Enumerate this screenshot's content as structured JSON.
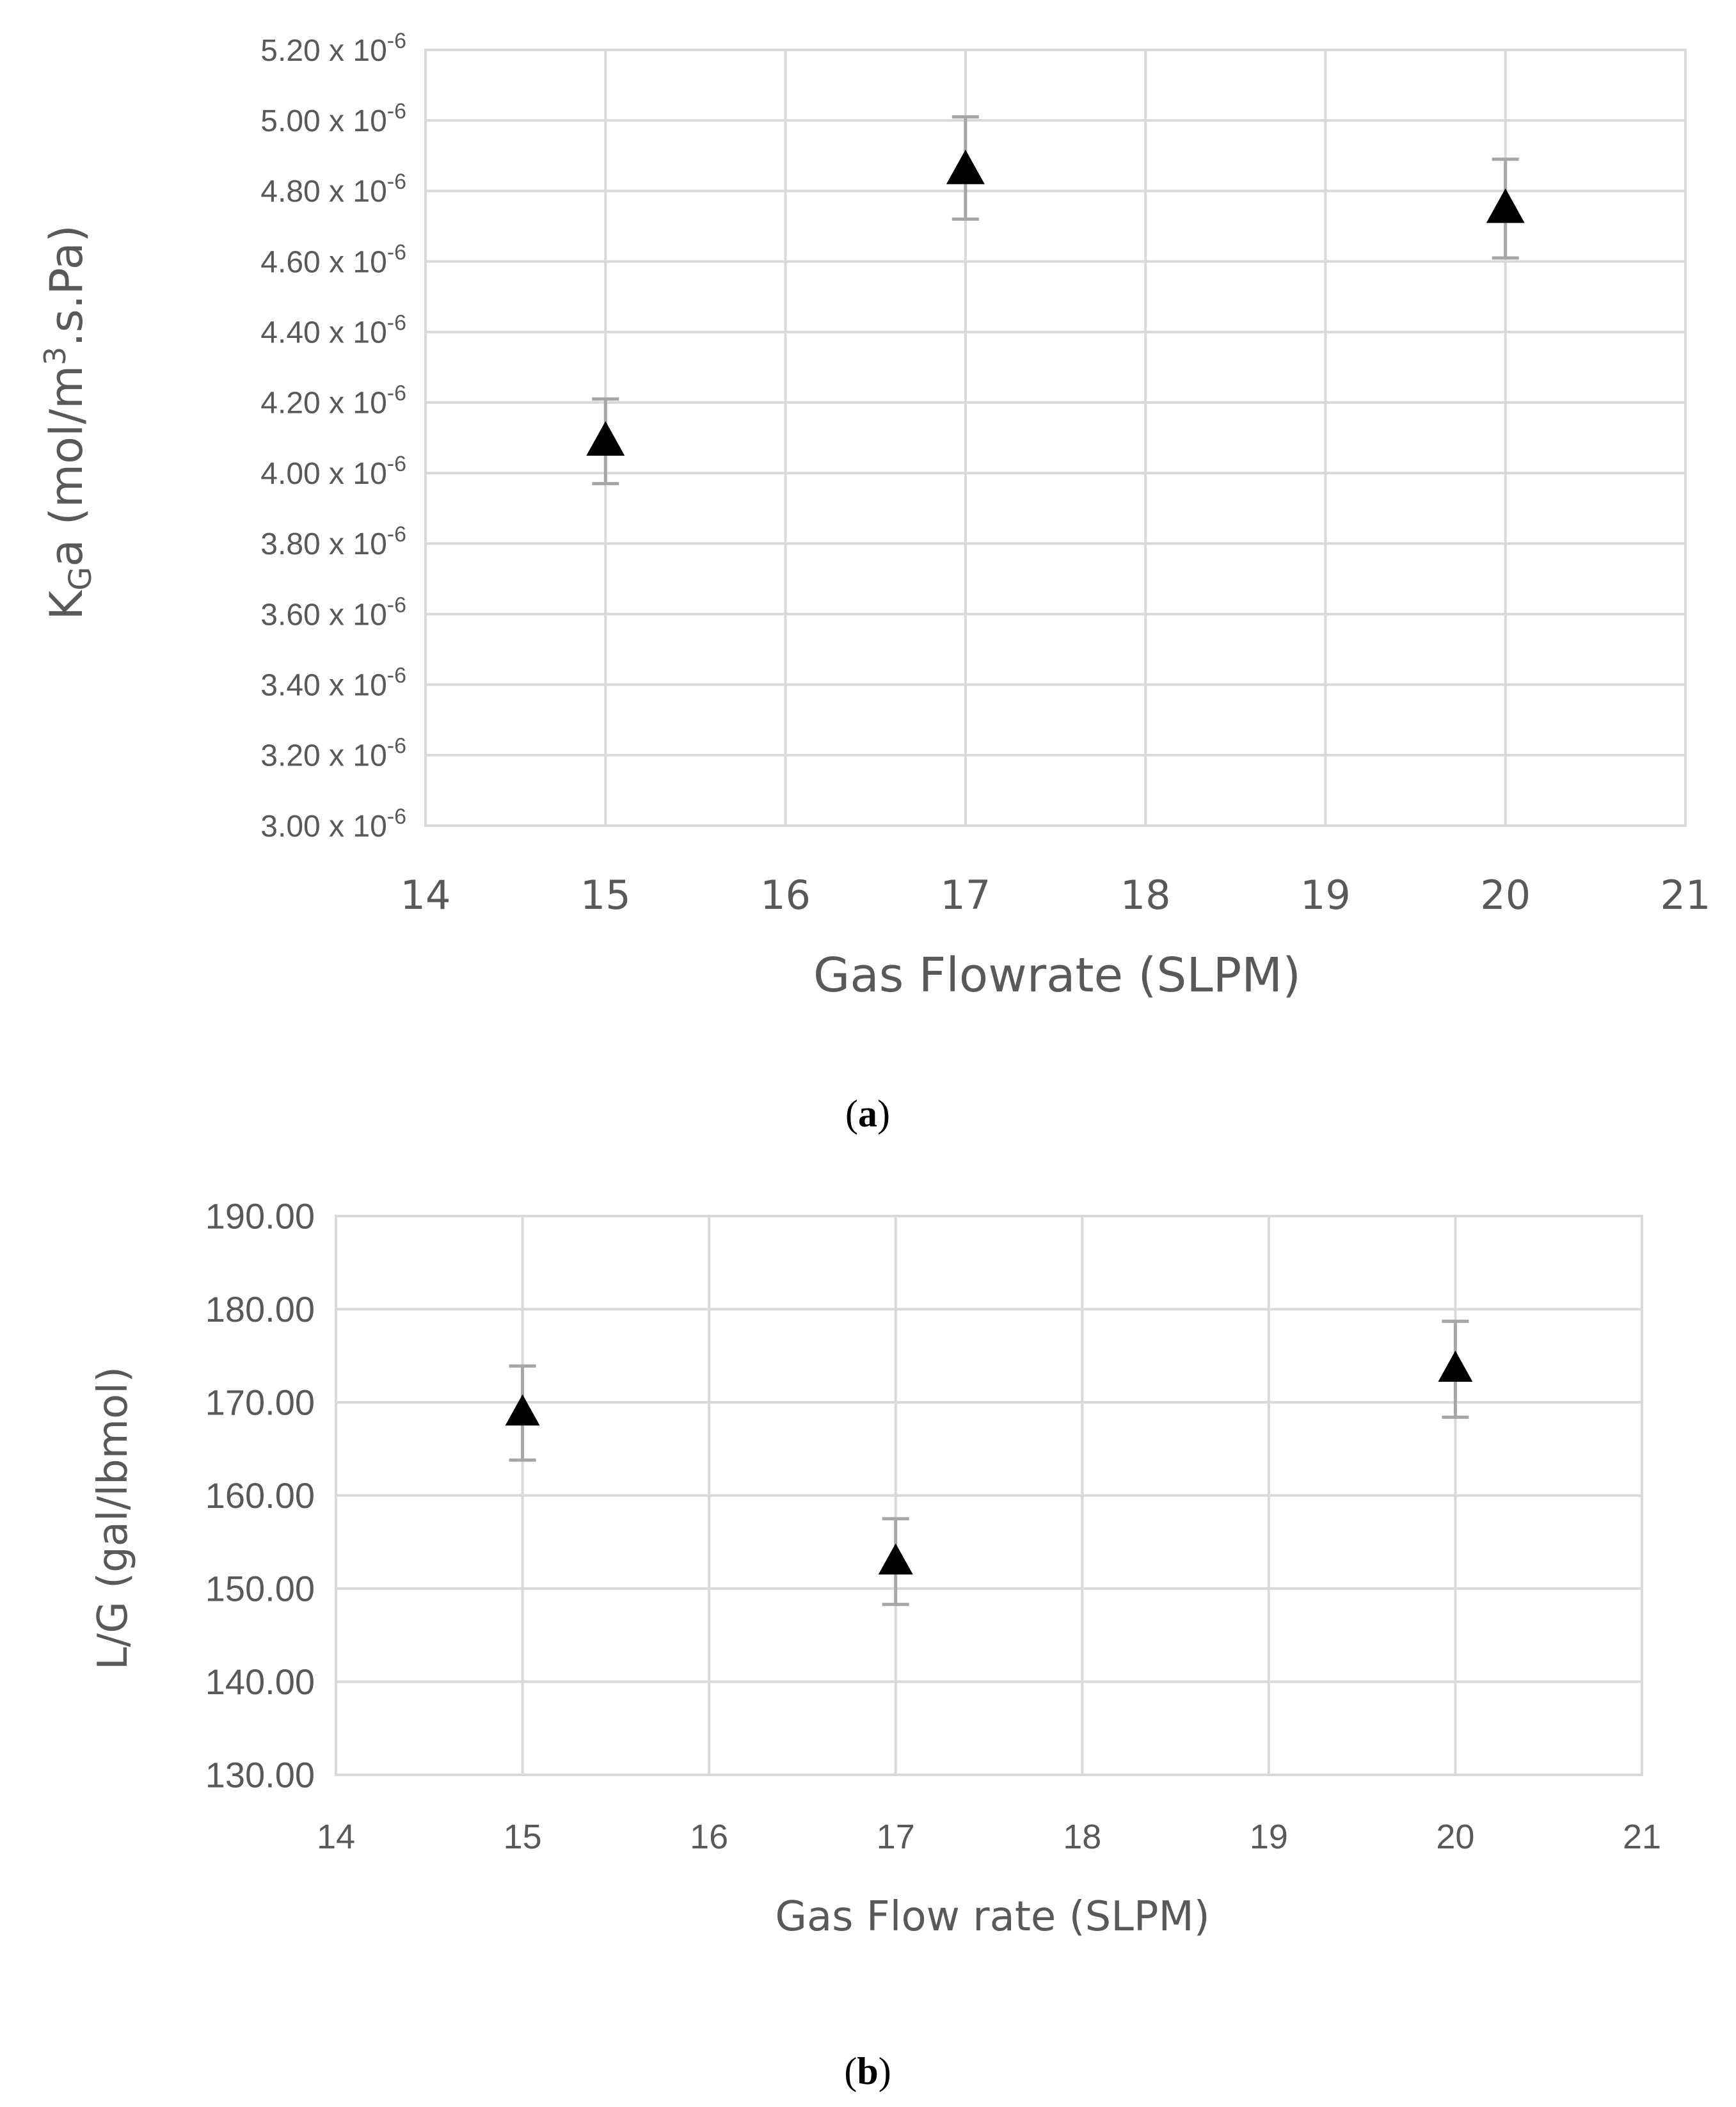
{
  "colors": {
    "grid": "#d9d9d9",
    "text": "#595959",
    "errorbar": "#a6a6a6",
    "marker": "#000000"
  },
  "chart_data": [
    {
      "id": "a",
      "type": "scatter",
      "marker": "triangle",
      "caption_open": "(",
      "caption_letter": "a",
      "caption_close": ")",
      "xlabel": "Gas Flowrate (SLPM)",
      "ylabel_main": "K",
      "ylabel_sub": "G",
      "ylabel_mid": "a (mol/m",
      "ylabel_sup": "3",
      "ylabel_end": ".s.Pa)",
      "xlim": [
        14,
        21
      ],
      "ylim": [
        3e-06,
        5.2e-06
      ],
      "grid": true,
      "x_ticks": [
        "14",
        "15",
        "16",
        "17",
        "18",
        "19",
        "20",
        "21"
      ],
      "y_ticks": [
        {
          "mantissa": "3.00 x 10",
          "exponent": "-6",
          "value": 3e-06
        },
        {
          "mantissa": "3.20 x 10",
          "exponent": "-6",
          "value": 3.2e-06
        },
        {
          "mantissa": "3.40 x 10",
          "exponent": "-6",
          "value": 3.4e-06
        },
        {
          "mantissa": "3.60 x 10",
          "exponent": "-6",
          "value": 3.6e-06
        },
        {
          "mantissa": "3.80 x 10",
          "exponent": "-6",
          "value": 3.8e-06
        },
        {
          "mantissa": "4.00 x 10",
          "exponent": "-6",
          "value": 4e-06
        },
        {
          "mantissa": "4.20 x 10",
          "exponent": "-6",
          "value": 4.2e-06
        },
        {
          "mantissa": "4.40 x 10",
          "exponent": "-6",
          "value": 4.4e-06
        },
        {
          "mantissa": "4.60 x 10",
          "exponent": "-6",
          "value": 4.6e-06
        },
        {
          "mantissa": "4.80 x 10",
          "exponent": "-6",
          "value": 4.8e-06
        },
        {
          "mantissa": "5.00 x 10",
          "exponent": "-6",
          "value": 5e-06
        },
        {
          "mantissa": "5.20 x 10",
          "exponent": "-6",
          "value": 5.2e-06
        }
      ],
      "points": [
        {
          "x": 15,
          "y": 4.09e-06,
          "err_low": 3.97e-06,
          "err_high": 4.21e-06
        },
        {
          "x": 17,
          "y": 4.86e-06,
          "err_low": 4.72e-06,
          "err_high": 5.01e-06
        },
        {
          "x": 20,
          "y": 4.75e-06,
          "err_low": 4.61e-06,
          "err_high": 4.89e-06
        }
      ]
    },
    {
      "id": "b",
      "type": "scatter",
      "marker": "triangle",
      "caption_open": "(",
      "caption_letter": "b",
      "caption_close": ")",
      "xlabel": "Gas Flow rate (SLPM)",
      "ylabel": "L/G (gal/lbmol)",
      "xlim": [
        14,
        21
      ],
      "ylim": [
        130,
        190
      ],
      "grid": true,
      "x_ticks": [
        "14",
        "15",
        "16",
        "17",
        "18",
        "19",
        "20",
        "21"
      ],
      "y_ticks": [
        "130.00",
        "140.00",
        "150.00",
        "160.00",
        "170.00",
        "180.00",
        "190.00"
      ],
      "points": [
        {
          "x": 15,
          "y": 168.9,
          "err_low": 163.8,
          "err_high": 173.9
        },
        {
          "x": 17,
          "y": 152.9,
          "err_low": 148.3,
          "err_high": 157.5
        },
        {
          "x": 20,
          "y": 173.6,
          "err_low": 168.4,
          "err_high": 178.7
        }
      ]
    }
  ]
}
